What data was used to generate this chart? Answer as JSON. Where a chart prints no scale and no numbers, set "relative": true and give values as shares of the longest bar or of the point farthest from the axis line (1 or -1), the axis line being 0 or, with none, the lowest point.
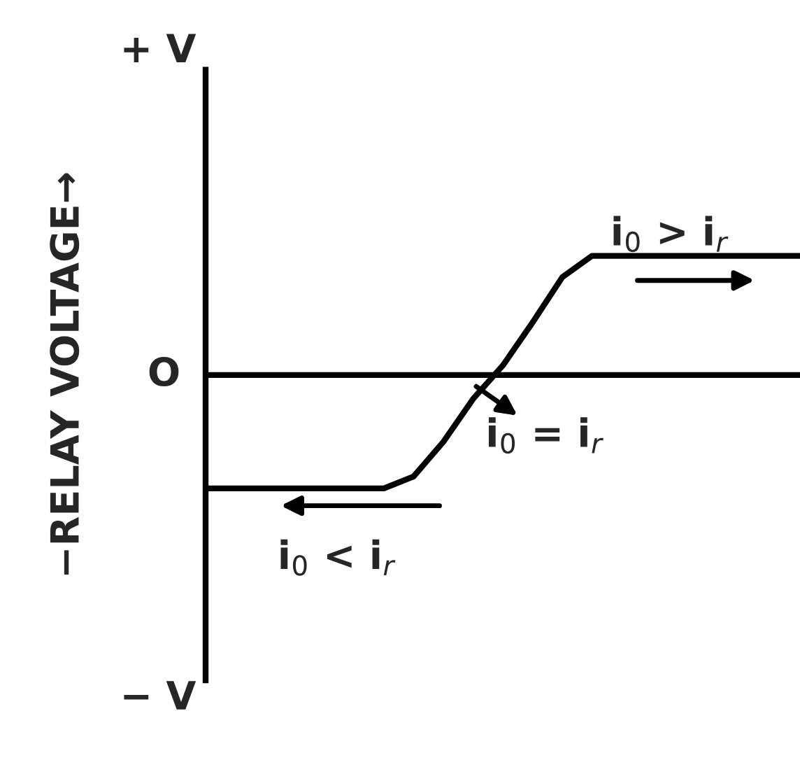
{
  "chart_data": {
    "type": "line",
    "ylabel": "−RELAY VOLTAGE→",
    "categories": [
      null,
      null,
      null,
      null,
      null,
      null,
      null,
      null,
      null,
      null,
      null,
      null,
      null,
      null,
      null,
      null,
      null,
      null,
      null,
      null,
      null
    ],
    "series": [
      {
        "color": "#000000",
        "values": [
          -0.95,
          -0.95,
          -0.95,
          -0.95,
          -0.95,
          -0.95,
          -0.95,
          -0.85,
          -0.56,
          -0.2,
          0.08,
          0.44,
          0.82,
          1,
          1,
          1,
          1,
          1,
          1,
          1,
          1
        ]
      }
    ],
    "relative": true,
    "ref_lines": [
      {
        "axis": "y",
        "value": 0,
        "color": "#000000",
        "line_style": "solid"
      }
    ],
    "annotations": [
      "i$_{0}$ > i$_{r}$",
      "i$_{0}$ = i$_{r}$",
      "i$_{0}$ < i$_{r}$",
      "+ V",
      "O",
      "− V"
    ],
    "grid": false,
    "legend": false,
    "marker": "none",
    "line_style": "solid"
  }
}
